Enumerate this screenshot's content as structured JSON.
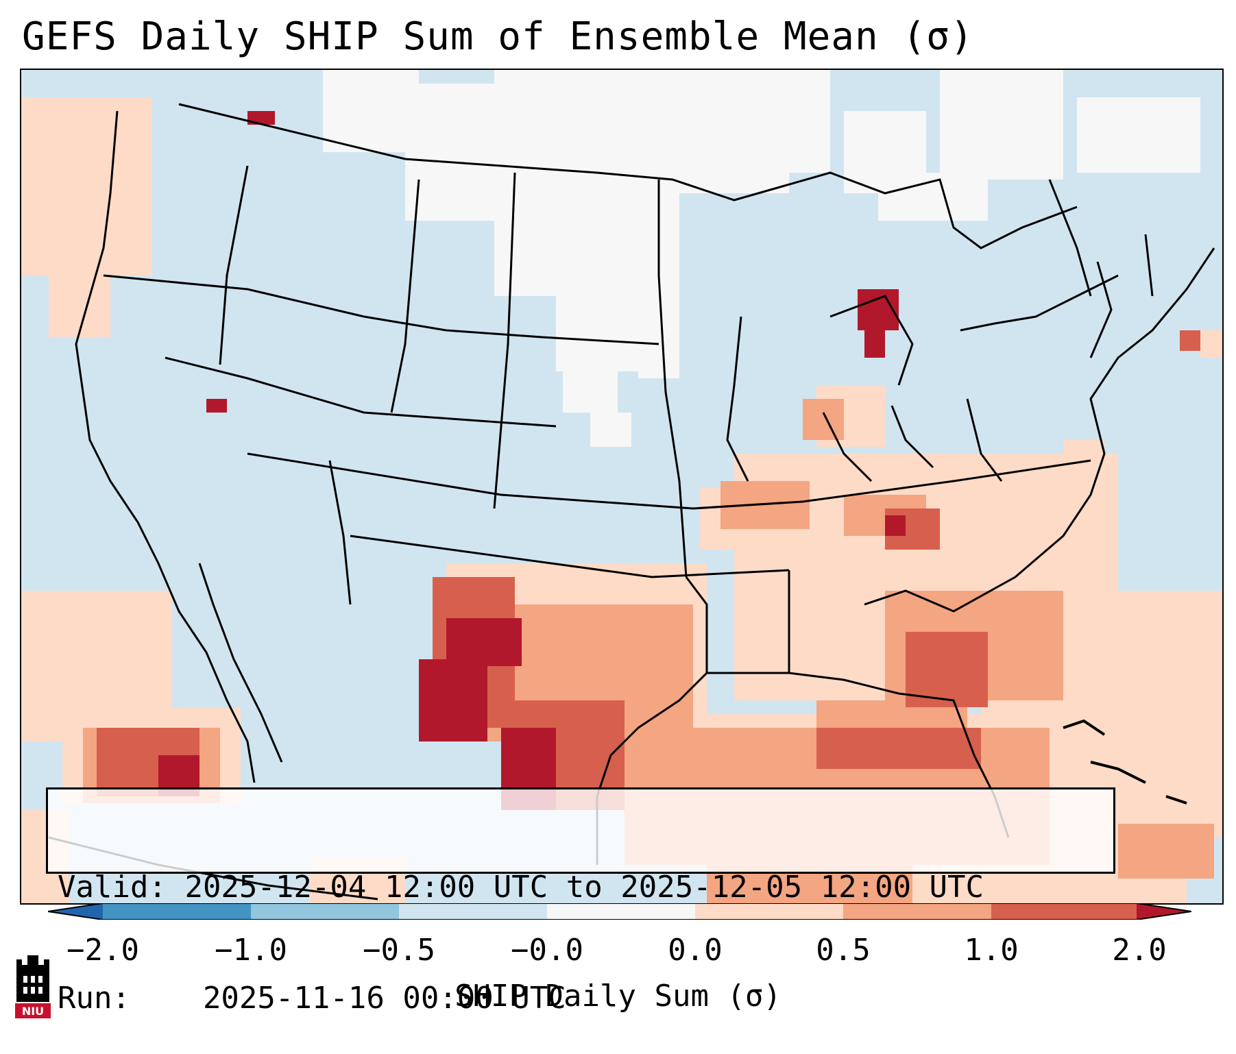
{
  "title": "GEFS Daily SHIP Sum of Ensemble Mean (σ)",
  "info": {
    "valid_label": "Valid:",
    "valid_value": "2025-12-04 12:00 UTC to 2025-12-05 12:00 UTC",
    "run_label": "Run:",
    "run_value": "2025-11-16 00:00 UTC"
  },
  "colorbar": {
    "label": "SHIP Daily Sum (σ)",
    "ticks": [
      "−2.0",
      "−1.0",
      "−0.5",
      "−0.0",
      "0.0",
      "0.5",
      "1.0",
      "2.0"
    ],
    "colors": [
      "#2166ac",
      "#4393c3",
      "#92c5de",
      "#d1e5f0",
      "#f7f7f7",
      "#fddbc7",
      "#f4a582",
      "#d6604d",
      "#b2182b"
    ]
  },
  "logo": {
    "text": "NIU",
    "icon": "niu-castle-logo"
  }
}
